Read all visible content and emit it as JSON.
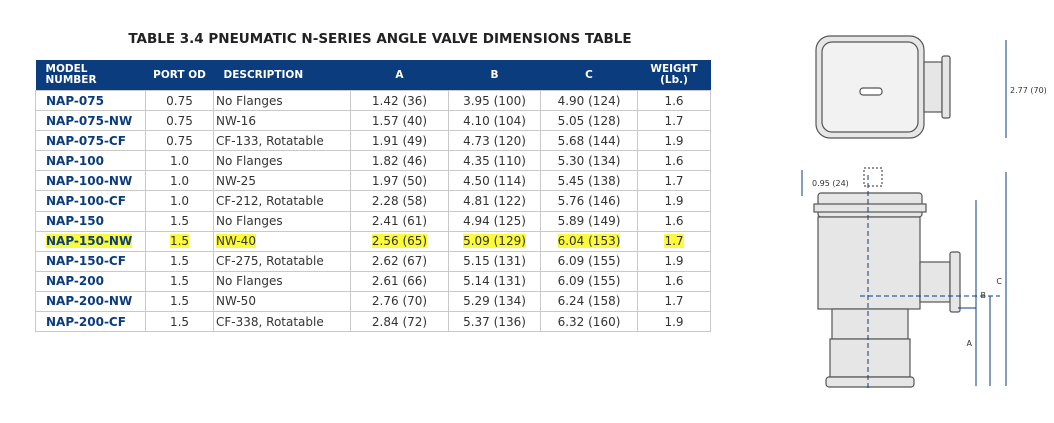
{
  "title": "TABLE 3.4 PNEUMATIC N-SERIES ANGLE VALVE DIMENSIONS TABLE",
  "table": {
    "headers": [
      "MODEL NUMBER",
      "PORT OD",
      "DESCRIPTION",
      "A",
      "B",
      "C",
      "WEIGHT (Lb.)"
    ],
    "rows": [
      [
        "NAP-075",
        "0.75",
        "No Flanges",
        "1.42 (36)",
        "3.95 (100)",
        "4.90 (124)",
        "1.6"
      ],
      [
        "NAP-075-NW",
        "0.75",
        "NW-16",
        "1.57 (40)",
        "4.10 (104)",
        "5.05 (128)",
        "1.7"
      ],
      [
        "NAP-075-CF",
        "0.75",
        "CF-133, Rotatable",
        "1.91 (49)",
        "4.73 (120)",
        "5.68 (144)",
        "1.9"
      ],
      [
        "NAP-100",
        "1.0",
        "No Flanges",
        "1.82 (46)",
        "4.35 (110)",
        "5.30 (134)",
        "1.6"
      ],
      [
        "NAP-100-NW",
        "1.0",
        "NW-25",
        "1.97 (50)",
        "4.50 (114)",
        "5.45 (138)",
        "1.7"
      ],
      [
        "NAP-100-CF",
        "1.0",
        "CF-212, Rotatable",
        "2.28 (58)",
        "4.81 (122)",
        "5.76 (146)",
        "1.9"
      ],
      [
        "NAP-150",
        "1.5",
        "No Flanges",
        "2.41 (61)",
        "4.94 (125)",
        "5.89 (149)",
        "1.6"
      ],
      [
        "NAP-150-NW",
        "1.5",
        "NW-40",
        "2.56 (65)",
        "5.09 (129)",
        "6.04 (153)",
        "1.7"
      ],
      [
        "NAP-150-CF",
        "1.5",
        "CF-275, Rotatable",
        "2.62 (67)",
        "5.15 (131)",
        "6.09 (155)",
        "1.9"
      ],
      [
        "NAP-200",
        "1.5",
        "No Flanges",
        "2.61 (66)",
        "5.14 (131)",
        "6.09 (155)",
        "1.6"
      ],
      [
        "NAP-200-NW",
        "1.5",
        "NW-50",
        "2.76 (70)",
        "5.29 (134)",
        "6.24 (158)",
        "1.7"
      ],
      [
        "NAP-200-CF",
        "1.5",
        "CF-338, Rotatable",
        "2.84 (72)",
        "5.37 (136)",
        "6.32 (160)",
        "1.9"
      ]
    ],
    "highlighted_row": 7
  },
  "diagram": {
    "top_width": "2.77 (70)",
    "cap_height": "0.95 (24)",
    "a": "A",
    "b": "B",
    "c": "C"
  }
}
